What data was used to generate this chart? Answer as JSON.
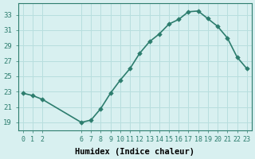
{
  "x": [
    0,
    1,
    2,
    6,
    7,
    8,
    9,
    10,
    11,
    12,
    13,
    14,
    15,
    16,
    17,
    18,
    19,
    20,
    21,
    22,
    23
  ],
  "y": [
    22.8,
    22.5,
    22.0,
    19.0,
    19.3,
    20.8,
    22.8,
    24.5,
    26.0,
    28.0,
    29.5,
    30.5,
    31.8,
    32.4,
    33.4,
    33.5,
    32.5,
    31.5,
    30.0,
    27.5,
    26.0
  ],
  "xticks": [
    0,
    1,
    2,
    6,
    7,
    8,
    9,
    10,
    11,
    12,
    13,
    14,
    15,
    16,
    17,
    18,
    19,
    20,
    21,
    22,
    23
  ],
  "xlabel": "Humidex (Indice chaleur)",
  "ylim": [
    18.0,
    34.5
  ],
  "yticks": [
    19,
    21,
    23,
    25,
    27,
    29,
    31,
    33
  ],
  "line_color": "#2d7d6e",
  "marker_color": "#2d7d6e",
  "bg_color": "#d8f0f0",
  "grid_color": "#b8dede"
}
